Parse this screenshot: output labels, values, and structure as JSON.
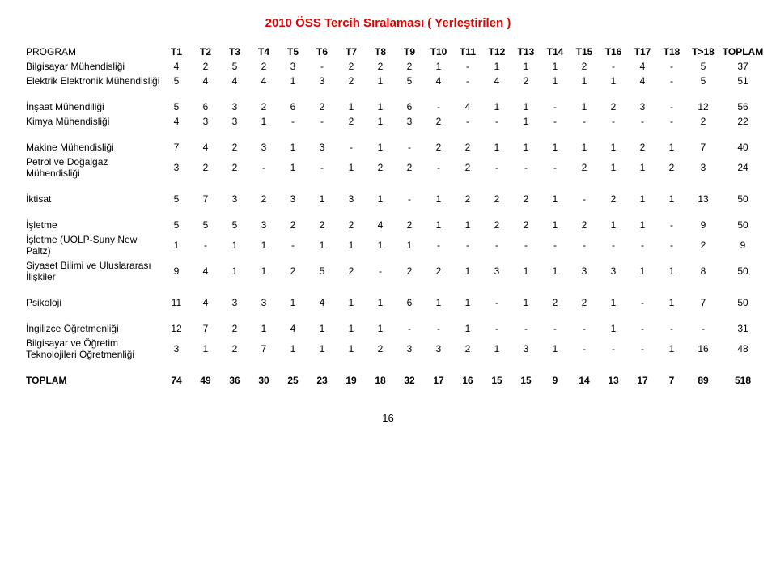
{
  "title": "2010 ÖSS Tercih Sıralaması ( Yerleştirilen )",
  "page_number": "16",
  "columns": [
    "PROGRAM",
    "T1",
    "T2",
    "T3",
    "T4",
    "T5",
    "T6",
    "T7",
    "T8",
    "T9",
    "T10",
    "T11",
    "T12",
    "T13",
    "T14",
    "T15",
    "T16",
    "T17",
    "T18",
    "T>18",
    "TOPLAM"
  ],
  "col_widths": [
    "170px",
    "36px",
    "36px",
    "36px",
    "36px",
    "36px",
    "36px",
    "36px",
    "36px",
    "36px",
    "36px",
    "36px",
    "36px",
    "36px",
    "36px",
    "36px",
    "36px",
    "36px",
    "36px",
    "42px",
    "56px"
  ],
  "groups": [
    {
      "rows": [
        {
          "label": "Bilgisayar Mühendisliği",
          "cells": [
            "4",
            "2",
            "5",
            "2",
            "3",
            "-",
            "2",
            "2",
            "2",
            "1",
            "-",
            "1",
            "1",
            "1",
            "2",
            "-",
            "4",
            "-",
            "5",
            "37"
          ]
        },
        {
          "label": "Elektrik Elektronik Mühendisliği",
          "cells": [
            "5",
            "4",
            "4",
            "4",
            "1",
            "3",
            "2",
            "1",
            "5",
            "4",
            "-",
            "4",
            "2",
            "1",
            "1",
            "1",
            "4",
            "-",
            "5",
            "51"
          ]
        }
      ]
    },
    {
      "rows": [
        {
          "label": "İnşaat Mühendiliği",
          "cells": [
            "5",
            "6",
            "3",
            "2",
            "6",
            "2",
            "1",
            "1",
            "6",
            "-",
            "4",
            "1",
            "1",
            "-",
            "1",
            "2",
            "3",
            "-",
            "12",
            "56"
          ]
        },
        {
          "label": "Kimya Mühendisliği",
          "cells": [
            "4",
            "3",
            "3",
            "1",
            "-",
            "-",
            "2",
            "1",
            "3",
            "2",
            "-",
            "-",
            "1",
            "-",
            "-",
            "-",
            "-",
            "-",
            "2",
            "22"
          ]
        }
      ]
    },
    {
      "rows": [
        {
          "label": "Makine Mühendisliği",
          "cells": [
            "7",
            "4",
            "2",
            "3",
            "1",
            "3",
            "-",
            "1",
            "-",
            "2",
            "2",
            "1",
            "1",
            "1",
            "1",
            "1",
            "2",
            "1",
            "7",
            "40"
          ]
        },
        {
          "label": "Petrol ve Doğalgaz Mühendisliği",
          "cells": [
            "3",
            "2",
            "2",
            "-",
            "1",
            "-",
            "1",
            "2",
            "2",
            "-",
            "2",
            "-",
            "-",
            "-",
            "2",
            "1",
            "1",
            "2",
            "3",
            "24"
          ]
        }
      ]
    },
    {
      "rows": [
        {
          "label": "İktisat",
          "cells": [
            "5",
            "7",
            "3",
            "2",
            "3",
            "1",
            "3",
            "1",
            "-",
            "1",
            "2",
            "2",
            "2",
            "1",
            "-",
            "2",
            "1",
            "1",
            "13",
            "50"
          ]
        }
      ]
    },
    {
      "rows": [
        {
          "label": "İşletme",
          "cells": [
            "5",
            "5",
            "5",
            "3",
            "2",
            "2",
            "2",
            "4",
            "2",
            "1",
            "1",
            "2",
            "2",
            "1",
            "2",
            "1",
            "1",
            "-",
            "9",
            "50"
          ]
        },
        {
          "label": "İşletme (UOLP-Suny New Paltz)",
          "cells": [
            "1",
            "-",
            "1",
            "1",
            "-",
            "1",
            "1",
            "1",
            "1",
            "-",
            "-",
            "-",
            "-",
            "-",
            "-",
            "-",
            "-",
            "-",
            "2",
            "9"
          ]
        },
        {
          "label": "Siyaset Bilimi ve Uluslararası İlişkiler",
          "cells": [
            "9",
            "4",
            "1",
            "1",
            "2",
            "5",
            "2",
            "-",
            "2",
            "2",
            "1",
            "3",
            "1",
            "1",
            "3",
            "3",
            "1",
            "1",
            "8",
            "50"
          ]
        }
      ]
    },
    {
      "rows": [
        {
          "label": "Psikoloji",
          "cells": [
            "11",
            "4",
            "3",
            "3",
            "1",
            "4",
            "1",
            "1",
            "6",
            "1",
            "1",
            "-",
            "1",
            "2",
            "2",
            "1",
            "-",
            "1",
            "7",
            "50"
          ]
        }
      ]
    },
    {
      "rows": [
        {
          "label": "İngilizce Öğretmenliği",
          "cells": [
            "12",
            "7",
            "2",
            "1",
            "4",
            "1",
            "1",
            "1",
            "-",
            "-",
            "1",
            "-",
            "-",
            "-",
            "-",
            "1",
            "-",
            "-",
            "-",
            "31"
          ]
        },
        {
          "label": "Bilgisayar ve Öğretim Teknolojileri Öğretmenliği",
          "cells": [
            "3",
            "1",
            "2",
            "7",
            "1",
            "1",
            "1",
            "2",
            "3",
            "3",
            "2",
            "1",
            "3",
            "1",
            "-",
            "-",
            "-",
            "1",
            "16",
            "48"
          ]
        }
      ]
    }
  ],
  "total": {
    "label": "TOPLAM",
    "cells": [
      "74",
      "49",
      "36",
      "30",
      "25",
      "23",
      "19",
      "18",
      "32",
      "17",
      "16",
      "15",
      "15",
      "9",
      "14",
      "13",
      "17",
      "7",
      "89",
      "518"
    ]
  }
}
